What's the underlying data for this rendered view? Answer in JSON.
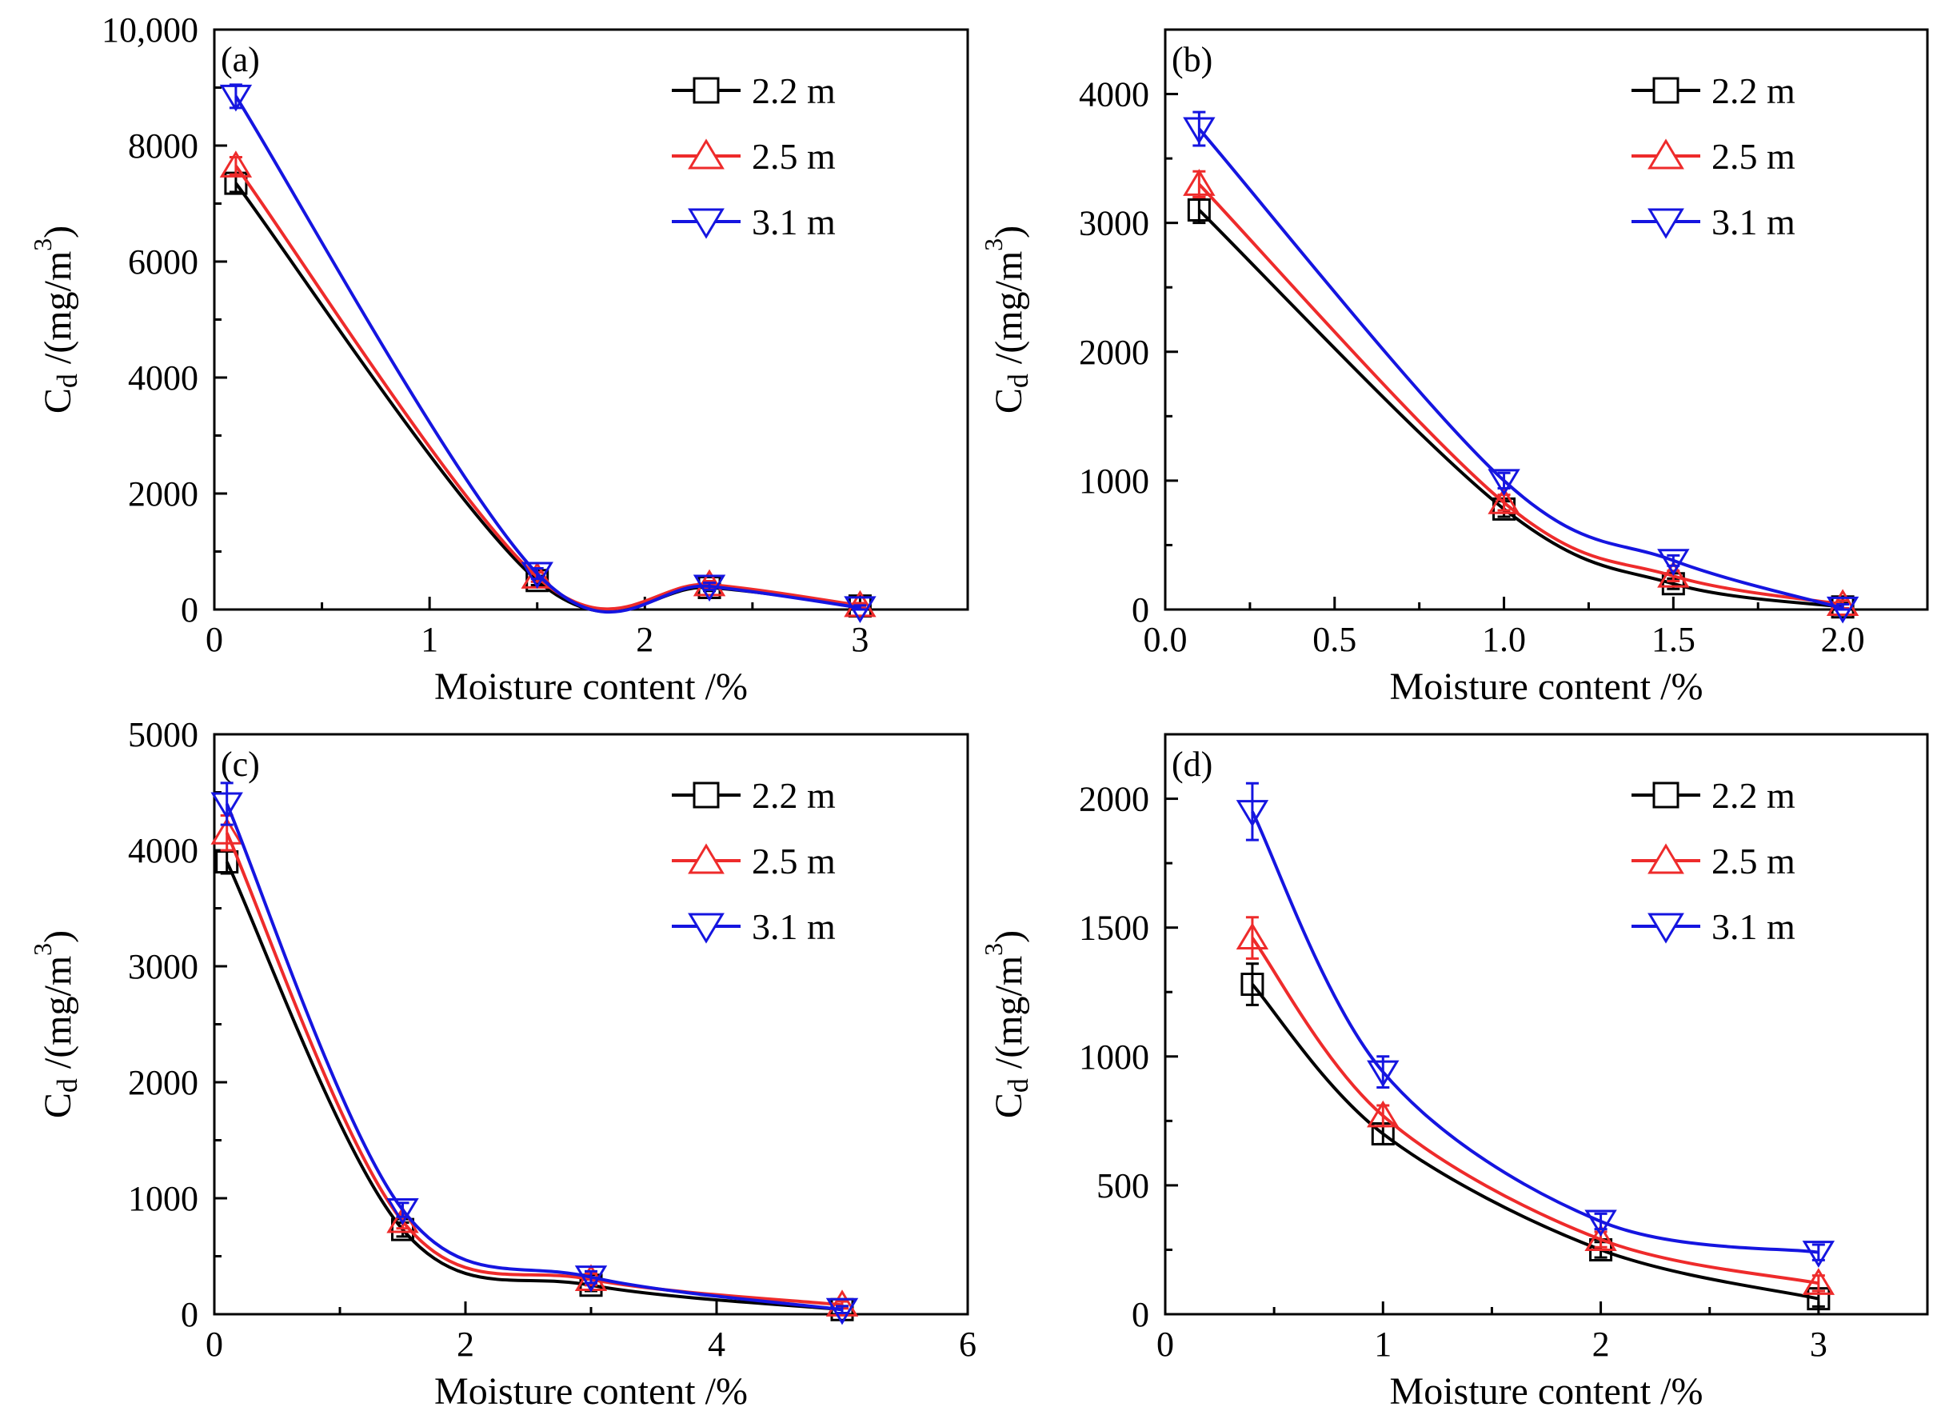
{
  "figure": {
    "xlabel": "Moisture content /%",
    "ylabel_main": "C",
    "ylabel_sub": "d",
    "ylabel_rest": " /(mg/m",
    "ylabel_sup": "3",
    "ylabel_close": ")"
  },
  "series_styles": [
    {
      "name": "2.2 m",
      "color": "#000000",
      "marker": "square"
    },
    {
      "name": "2.5 m",
      "color": "#ee2b2b",
      "marker": "triangle-up"
    },
    {
      "name": "3.1 m",
      "color": "#1515e0",
      "marker": "triangle-down"
    }
  ],
  "chart_data": [
    {
      "type": "line",
      "panel": "(a)",
      "xlabel": "Moisture content /%",
      "ylabel": "Cd /(mg/m3)",
      "xlim": [
        0,
        3.5
      ],
      "ylim": [
        0,
        10000
      ],
      "xticks": [
        0,
        1,
        2,
        3
      ],
      "xtick_labels": [
        "0",
        "1",
        "2",
        "3"
      ],
      "yticks": [
        0,
        2000,
        4000,
        6000,
        8000,
        10000
      ],
      "ytick_labels": [
        "0",
        "2000",
        "4000",
        "6000",
        "8000",
        "10,000"
      ],
      "legend": "top-right",
      "x": [
        0.1,
        1.5,
        2.3,
        3.0
      ],
      "series": [
        {
          "name": "2.2 m",
          "values": [
            7350,
            500,
            380,
            60
          ],
          "errors": [
            150,
            80,
            60,
            40
          ]
        },
        {
          "name": "2.5 m",
          "values": [
            7650,
            560,
            430,
            70
          ],
          "errors": [
            150,
            80,
            60,
            40
          ]
        },
        {
          "name": "3.1 m",
          "values": [
            8850,
            620,
            400,
            30
          ],
          "errors": [
            200,
            90,
            60,
            40
          ]
        }
      ]
    },
    {
      "type": "line",
      "panel": "(b)",
      "xlabel": "Moisture content /%",
      "ylabel": "Cd /(mg/m3)",
      "xlim": [
        0,
        2.25
      ],
      "ylim": [
        0,
        4500
      ],
      "xticks": [
        0,
        0.5,
        1.0,
        1.5,
        2.0
      ],
      "xtick_labels": [
        "0.0",
        "0.5",
        "1.0",
        "1.5",
        "2.0"
      ],
      "yticks": [
        0,
        1000,
        2000,
        3000,
        4000
      ],
      "ytick_labels": [
        "0",
        "1000",
        "2000",
        "3000",
        "4000"
      ],
      "legend": "top-right",
      "x": [
        0.1,
        1.0,
        1.5,
        2.0
      ],
      "series": [
        {
          "name": "2.2 m",
          "values": [
            3100,
            780,
            200,
            20
          ],
          "errors": [
            100,
            60,
            40,
            30
          ]
        },
        {
          "name": "2.5 m",
          "values": [
            3300,
            830,
            260,
            40
          ],
          "errors": [
            100,
            60,
            40,
            30
          ]
        },
        {
          "name": "3.1 m",
          "values": [
            3730,
            1000,
            380,
            10
          ],
          "errors": [
            130,
            60,
            40,
            30
          ]
        }
      ]
    },
    {
      "type": "line",
      "panel": "(c)",
      "xlabel": "Moisture content /%",
      "ylabel": "Cd /(mg/m3)",
      "xlim": [
        0,
        6
      ],
      "ylim": [
        0,
        5000
      ],
      "xticks": [
        0,
        2,
        4,
        6
      ],
      "xtick_labels": [
        "0",
        "2",
        "4",
        "6"
      ],
      "yticks": [
        0,
        1000,
        2000,
        3000,
        4000,
        5000
      ],
      "ytick_labels": [
        "0",
        "1000",
        "2000",
        "3000",
        "4000",
        "5000"
      ],
      "legend": "top-right",
      "x": [
        0.1,
        1.5,
        3.0,
        5.0
      ],
      "series": [
        {
          "name": "2.2 m",
          "values": [
            3900,
            730,
            250,
            40
          ],
          "errors": [
            100,
            60,
            50,
            30
          ]
        },
        {
          "name": "2.5 m",
          "values": [
            4150,
            800,
            300,
            80
          ],
          "errors": [
            150,
            60,
            50,
            30
          ]
        },
        {
          "name": "3.1 m",
          "values": [
            4400,
            900,
            320,
            40
          ],
          "errors": [
            180,
            60,
            50,
            30
          ]
        }
      ]
    },
    {
      "type": "line",
      "panel": "(d)",
      "xlabel": "Moisture content /%",
      "ylabel": "Cd /(mg/m3)",
      "xlim": [
        0,
        3.5
      ],
      "ylim": [
        0,
        2250
      ],
      "xticks": [
        0,
        1,
        2,
        3
      ],
      "xtick_labels": [
        "0",
        "1",
        "2",
        "3"
      ],
      "yticks": [
        0,
        500,
        1000,
        1500,
        2000
      ],
      "ytick_labels": [
        "0",
        "500",
        "1000",
        "1500",
        "2000"
      ],
      "legend": "top-right",
      "x": [
        0.4,
        1.0,
        2.0,
        3.0
      ],
      "series": [
        {
          "name": "2.2 m",
          "values": [
            1280,
            700,
            250,
            60
          ],
          "errors": [
            80,
            40,
            30,
            30
          ]
        },
        {
          "name": "2.5 m",
          "values": [
            1460,
            770,
            290,
            120
          ],
          "errors": [
            80,
            40,
            30,
            30
          ]
        },
        {
          "name": "3.1 m",
          "values": [
            1950,
            940,
            360,
            240
          ],
          "errors": [
            110,
            60,
            30,
            30
          ]
        }
      ]
    }
  ]
}
